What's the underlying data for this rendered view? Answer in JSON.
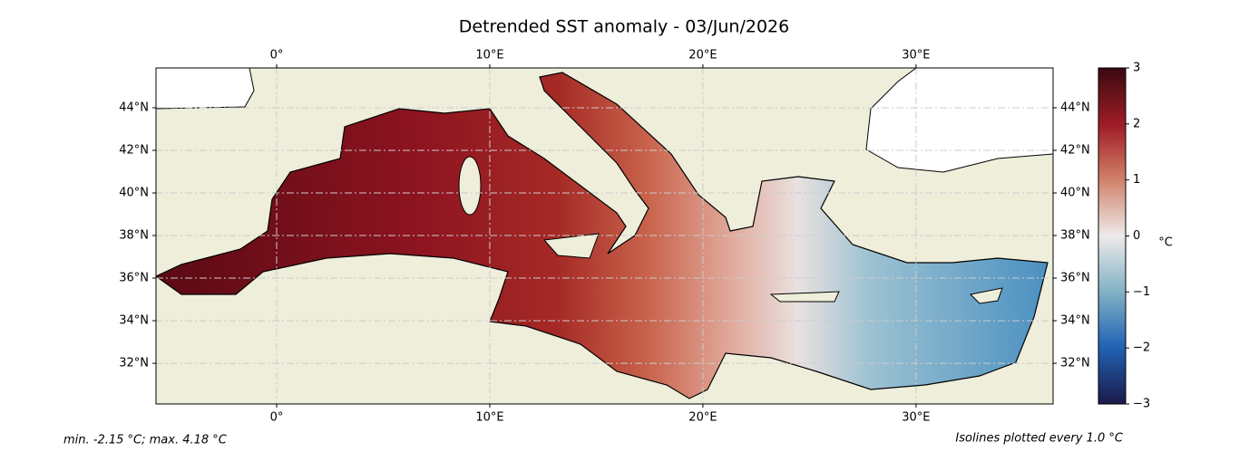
{
  "map": {
    "title": "Detrended SST anomaly - 03/Jun/2026",
    "xlim": [
      -5.66,
      36.43
    ],
    "ylim": [
      30.09,
      45.87
    ],
    "xticks": [
      {
        "value": 0,
        "label": "0°"
      },
      {
        "value": 10,
        "label": "10°E"
      },
      {
        "value": 20,
        "label": "20°E"
      },
      {
        "value": 30,
        "label": "30°E"
      }
    ],
    "yticks": [
      {
        "value": 32,
        "label": "32°N"
      },
      {
        "value": 34,
        "label": "34°N"
      },
      {
        "value": 36,
        "label": "36°N"
      },
      {
        "value": 38,
        "label": "38°N"
      },
      {
        "value": 40,
        "label": "40°N"
      },
      {
        "value": 42,
        "label": "42°N"
      },
      {
        "value": 44,
        "label": "44°N"
      }
    ],
    "colorbar": {
      "lim": [
        -3,
        3
      ],
      "ticks": [
        {
          "value": -3,
          "label": "−3"
        },
        {
          "value": -2,
          "label": "−2"
        },
        {
          "value": -1,
          "label": "−1"
        },
        0,
        1,
        2,
        3
      ],
      "label": "°C"
    },
    "notes": {
      "min_max": "min. -2.15 °C; max. 4.18 °C",
      "isolines": "Isolines plotted every 1.0 °C"
    }
  }
}
